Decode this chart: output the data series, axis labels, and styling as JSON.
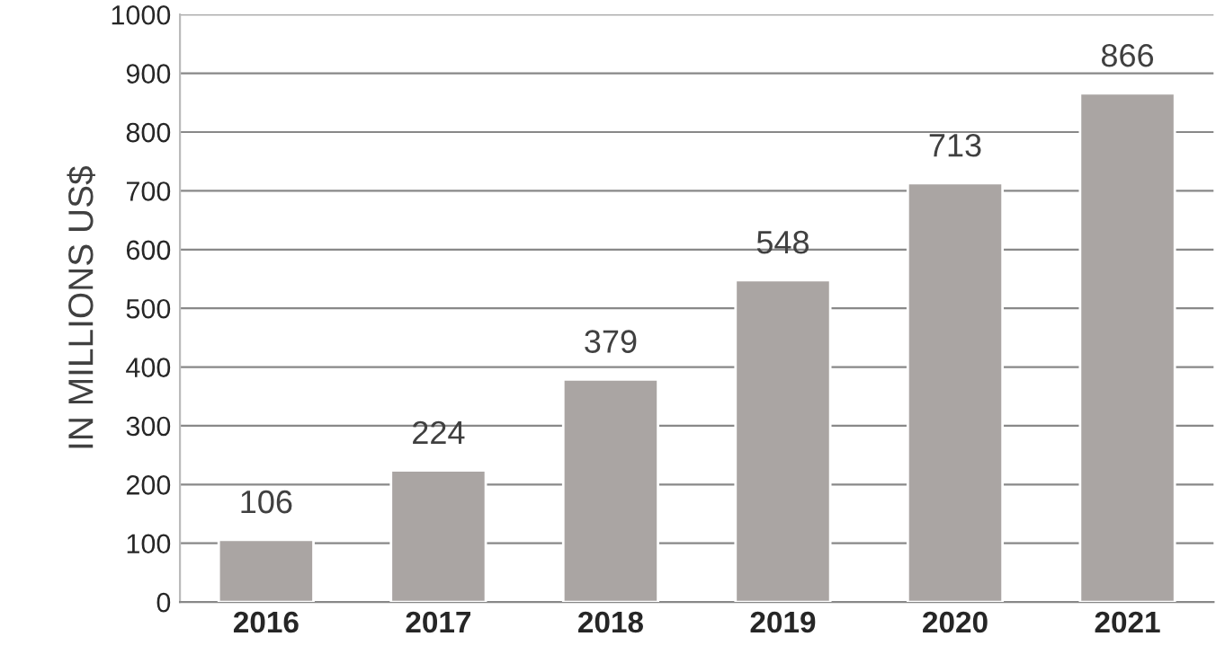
{
  "chart_data": {
    "type": "bar",
    "ylabel": "IN MILLIONS US$",
    "categories": [
      "2016",
      "2017",
      "2018",
      "2019",
      "2020",
      "2021"
    ],
    "values": [
      106,
      224,
      379,
      548,
      713,
      866
    ],
    "color": "#aaa5a3",
    "ylim": [
      0,
      1000
    ],
    "yticks": [
      0,
      100,
      200,
      300,
      400,
      500,
      600,
      700,
      800,
      900,
      1000
    ],
    "grid": "y",
    "data_labels": true,
    "legend": false
  }
}
